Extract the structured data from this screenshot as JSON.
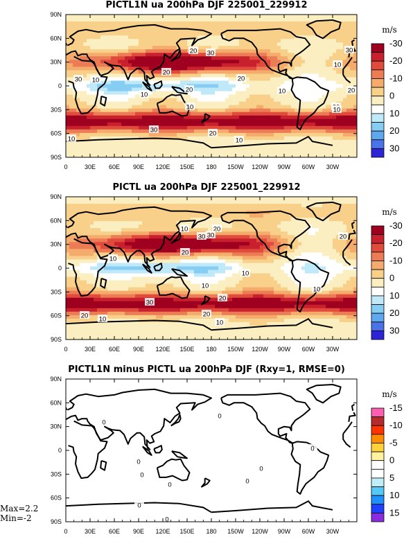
{
  "panels": [
    {
      "id": "pictl1n",
      "title": "PICTL1N ua 200hPa DJF 225001_229912",
      "units": "m/s",
      "colorbar": {
        "colors": [
          "#2d24d8",
          "#4b73e8",
          "#5fa8ef",
          "#86cdf4",
          "#bfe8f8",
          "#ffffff",
          "#fbeec1",
          "#f8d089",
          "#f4ab6c",
          "#ec7c55",
          "#e04b3c",
          "#c8202c",
          "#a00020"
        ],
        "labels": [
          "-30",
          "-20",
          "-10",
          "0",
          "10",
          "20",
          "30"
        ]
      },
      "contour_labels": [
        "20",
        "30",
        "30",
        "20",
        "10",
        "10",
        "20",
        "10",
        "20",
        "20",
        "10",
        "30",
        "20",
        "10",
        "10",
        "30",
        "10",
        "10",
        "20"
      ]
    },
    {
      "id": "pictl",
      "title": "PICTL ua 200hPa DJF 225001_229912",
      "units": "m/s",
      "colorbar": {
        "colors": [
          "#2d24d8",
          "#4b73e8",
          "#5fa8ef",
          "#86cdf4",
          "#bfe8f8",
          "#ffffff",
          "#fbeec1",
          "#f8d089",
          "#f4ab6c",
          "#ec7c55",
          "#e04b3c",
          "#c8202c",
          "#a00020"
        ],
        "labels": [
          "-30",
          "-20",
          "-10",
          "0",
          "10",
          "20",
          "30"
        ]
      },
      "contour_labels": [
        "10",
        "20",
        "30",
        "10",
        "20",
        "30",
        "20",
        "10",
        "10",
        "30",
        "20",
        "20",
        "20",
        "10",
        "10",
        "10"
      ]
    },
    {
      "id": "diff",
      "title": "PICTL1N minus PICTL ua 200hPa DJF (Rxy=1, RMSE=0)",
      "units": "m/s",
      "colorbar": {
        "colors": [
          "#8a2be2",
          "#1e40ff",
          "#1e90ff",
          "#56c8f5",
          "#bfeef9",
          "#ffffff",
          "#ffffff",
          "#fff3a0",
          "#ffd13a",
          "#ff8c00",
          "#ff3300",
          "#b52a2a",
          "#ff5fb0"
        ],
        "labels": [
          "-15",
          "-10",
          "-5",
          "0",
          "5",
          "10",
          "15"
        ]
      },
      "contour_labels": [
        "0",
        "0",
        "0",
        "0",
        "0",
        "0",
        "0",
        "0",
        "0",
        "0"
      ]
    }
  ],
  "lat_labels": [
    "90N",
    "60N",
    "30N",
    "0",
    "30S",
    "60S",
    "90S"
  ],
  "lon_labels": [
    "0",
    "30E",
    "60E",
    "90E",
    "120E",
    "150E",
    "180",
    "150W",
    "120W",
    "90W",
    "60W",
    "30W"
  ],
  "stats": {
    "max": "Max=2.2",
    "min": "Min=-2"
  }
}
